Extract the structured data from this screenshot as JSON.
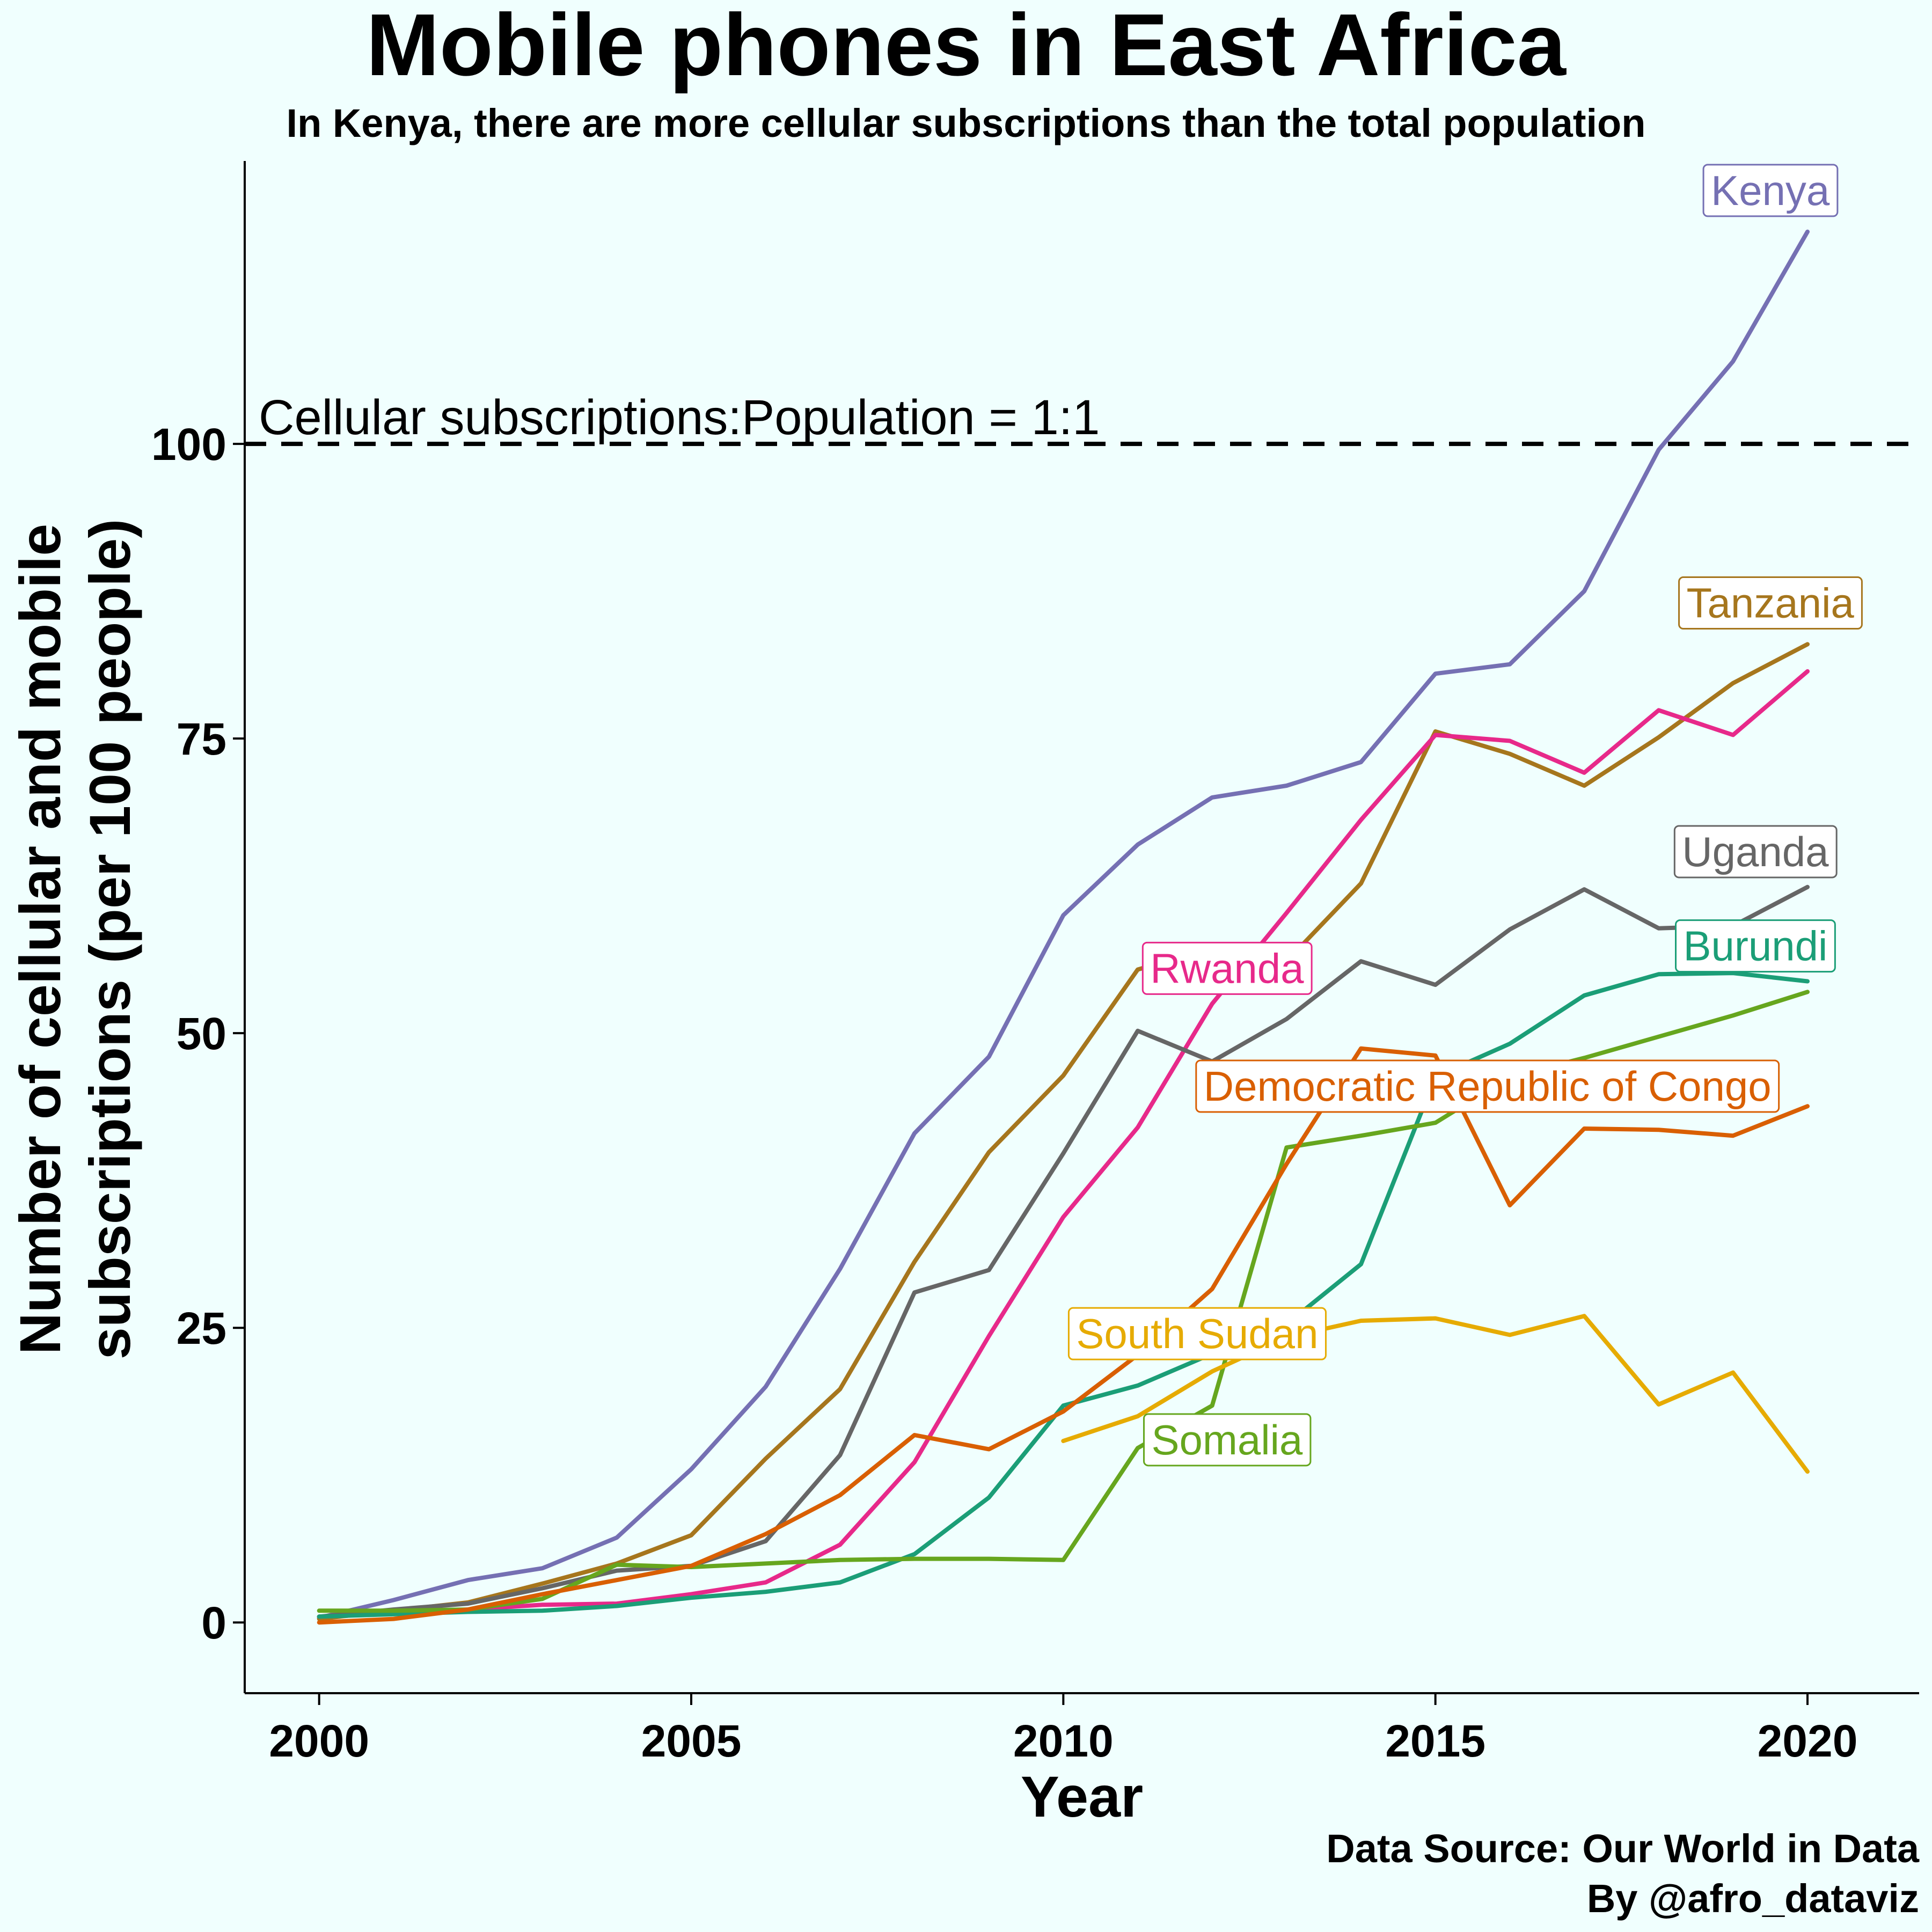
{
  "chart_data": {
    "type": "line",
    "title": "Mobile phones in East Africa",
    "subtitle": "In Kenya, there are more cellular subscriptions than the total population",
    "xlabel": "Year",
    "ylabel_lines": [
      "Number of cellular and mobile",
      "subscriptions (per 100 people)"
    ],
    "caption_lines": [
      "Data Source: Our World in Data",
      "By @afro_dataviz"
    ],
    "xlim": [
      1999,
      2021.5
    ],
    "ylim": [
      -6,
      124
    ],
    "x_ticks": [
      2000,
      2005,
      2010,
      2015,
      2020
    ],
    "y_ticks": [
      0,
      25,
      50,
      75,
      100
    ],
    "grid": false,
    "reference_line": {
      "y": 100,
      "label": "Cellular subscriptions:Population = 1:1"
    },
    "series": [
      {
        "name": "Kenya",
        "color": "#7570b3",
        "label_at": [
          2019.5,
          121.5
        ],
        "x": [
          2000,
          2001,
          2002,
          2003,
          2004,
          2005,
          2006,
          2007,
          2008,
          2009,
          2010,
          2011,
          2012,
          2013,
          2014,
          2015,
          2016,
          2017,
          2018,
          2019,
          2020
        ],
        "y": [
          0.4,
          1.9,
          3.6,
          4.6,
          7.2,
          13,
          20,
          30,
          41.5,
          48,
          60,
          66,
          70,
          71,
          73,
          80.5,
          81.3,
          87.5,
          99.5,
          107,
          118
        ]
      },
      {
        "name": "Tanzania",
        "color": "#a6761d",
        "label_at": [
          2019.5,
          86.5
        ],
        "x": [
          2000,
          2001,
          2002,
          2003,
          2004,
          2005,
          2006,
          2007,
          2008,
          2009,
          2010,
          2011,
          2012,
          2013,
          2014,
          2015,
          2016,
          2017,
          2018,
          2019,
          2020
        ],
        "y": [
          0.3,
          1,
          1.7,
          3.3,
          5,
          7.4,
          13.9,
          19.8,
          30.6,
          39.9,
          46.4,
          55.4,
          57.2,
          56.1,
          62.7,
          75.6,
          73.7,
          71,
          75.1,
          79.7,
          83
        ]
      },
      {
        "name": "Rwanda",
        "color": "#e7298a",
        "label_at": [
          2012.2,
          55.5
        ],
        "x": [
          2000,
          2001,
          2002,
          2003,
          2004,
          2005,
          2006,
          2007,
          2008,
          2009,
          2010,
          2011,
          2012,
          2013,
          2014,
          2015,
          2016,
          2017,
          2018,
          2019,
          2020
        ],
        "y": [
          0.5,
          0.8,
          1.1,
          1.5,
          1.6,
          2.4,
          3.4,
          6.6,
          13.6,
          24.3,
          34.4,
          42,
          52.5,
          60.2,
          68.1,
          75.3,
          74.8,
          72.1,
          77.4,
          75.3,
          80.7
        ]
      },
      {
        "name": "Uganda",
        "color": "#666666",
        "label_at": [
          2019.3,
          65.4
        ],
        "x": [
          2000,
          2001,
          2002,
          2003,
          2004,
          2005,
          2006,
          2007,
          2008,
          2009,
          2010,
          2011,
          2012,
          2013,
          2014,
          2015,
          2016,
          2017,
          2018,
          2019,
          2020
        ],
        "y": [
          0.5,
          1.1,
          1.6,
          2.9,
          4.4,
          4.8,
          6.9,
          14.2,
          28,
          29.9,
          39.8,
          50.2,
          47.6,
          51.2,
          56.1,
          54.1,
          58.8,
          62.2,
          58.9,
          59.1,
          62.4
        ]
      },
      {
        "name": "Burundi",
        "color": "#1b9e77",
        "label_at": [
          2019.3,
          57.4
        ],
        "x": [
          2000,
          2001,
          2002,
          2003,
          2004,
          2005,
          2006,
          2007,
          2008,
          2009,
          2010,
          2011,
          2012,
          2013,
          2014,
          2015,
          2016,
          2017,
          2018,
          2019,
          2020
        ],
        "y": [
          0.5,
          0.7,
          0.9,
          1,
          1.4,
          2.1,
          2.6,
          3.4,
          5.8,
          10.6,
          18.4,
          20.1,
          22.8,
          25.3,
          30.4,
          46.3,
          49.1,
          53.2,
          55,
          55.1,
          54.4
        ]
      },
      {
        "name": "Somalia",
        "color": "#66a61e",
        "label_at": [
          2012.2,
          15.5
        ],
        "x": [
          2000,
          2001,
          2002,
          2003,
          2004,
          2005,
          2006,
          2007,
          2008,
          2009,
          2010,
          2011,
          2012,
          2013,
          2014,
          2015,
          2016,
          2017,
          2018,
          2019,
          2020
        ],
        "y": [
          1,
          1,
          1.1,
          2,
          4.9,
          4.7,
          5,
          5.3,
          5.4,
          5.4,
          5.3,
          14.8,
          18.4,
          40.3,
          41.3,
          42.4,
          46.3,
          47.9,
          49.7,
          51.5,
          53.5
        ]
      },
      {
        "name": "Democratic Republic of Congo",
        "color": "#d95f02",
        "label_at": [
          2015.7,
          45.5
        ],
        "x": [
          2000,
          2001,
          2002,
          2003,
          2004,
          2005,
          2006,
          2007,
          2008,
          2009,
          2010,
          2011,
          2012,
          2013,
          2014,
          2015,
          2016,
          2017,
          2018,
          2019,
          2020
        ],
        "y": [
          0,
          0.3,
          1.1,
          2.4,
          3.6,
          4.8,
          7.5,
          10.8,
          15.9,
          14.7,
          17.9,
          22.7,
          28.3,
          38.9,
          48.7,
          48.1,
          35.4,
          41.9,
          41.8,
          41.3,
          43.8
        ]
      },
      {
        "name": "South Sudan",
        "color": "#e6ab02",
        "label_at": [
          2011.8,
          24.5
        ],
        "x": [
          2010,
          2011,
          2012,
          2013,
          2014,
          2015,
          2016,
          2017,
          2018,
          2019,
          2020
        ],
        "y": [
          15.4,
          17.5,
          21.3,
          24.2,
          25.6,
          25.8,
          24.4,
          26,
          18.5,
          21.2,
          12.8
        ]
      }
    ]
  }
}
